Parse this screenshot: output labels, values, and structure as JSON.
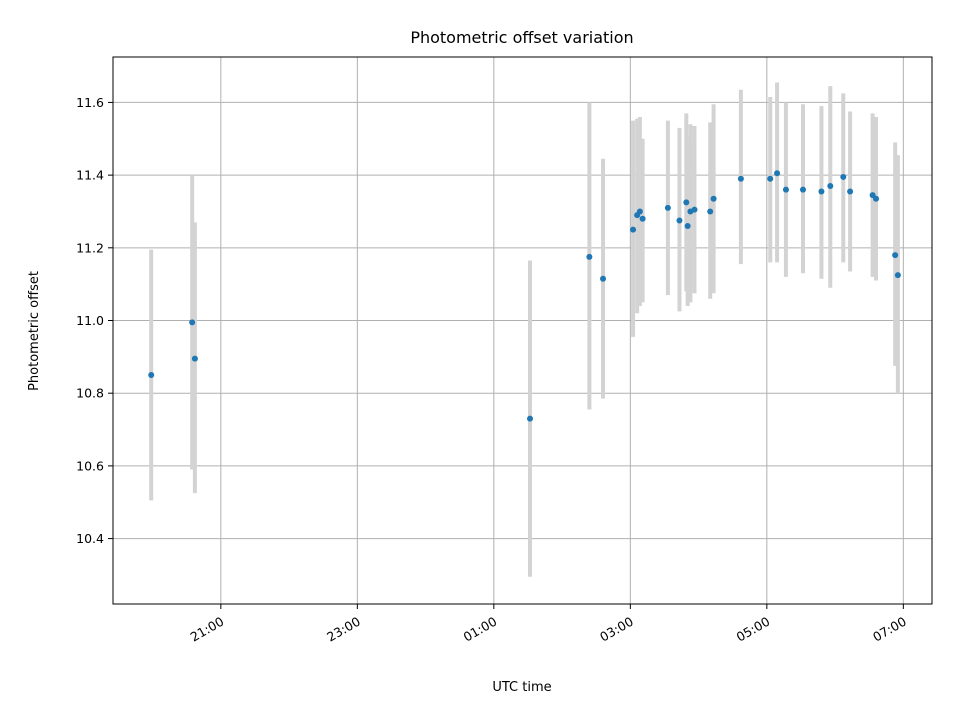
{
  "chart_data": {
    "type": "scatter",
    "title": "Photometric offset variation",
    "xlabel": "UTC time",
    "ylabel": "Photometric offset",
    "x_tick_labels": [
      "21:00",
      "23:00",
      "01:00",
      "03:00",
      "05:00",
      "07:00"
    ],
    "x_tick_hours": [
      21,
      23,
      25,
      27,
      29,
      31
    ],
    "xlim_hours": [
      19.42,
      31.42
    ],
    "ylim": [
      10.22,
      11.725
    ],
    "y_ticks": [
      10.4,
      10.6,
      10.8,
      11.0,
      11.2,
      11.4,
      11.6
    ],
    "y_tick_labels": [
      "10.4",
      "10.6",
      "10.8",
      "11.0",
      "11.2",
      "11.4",
      "11.6"
    ],
    "grid": true,
    "point_color": "#1f77b4",
    "errorbar_color": "#d3d3d3",
    "points": [
      {
        "t": 19.98,
        "y": 10.85,
        "lo": 10.505,
        "hi": 11.195
      },
      {
        "t": 20.58,
        "y": 10.995,
        "lo": 10.59,
        "hi": 11.4
      },
      {
        "t": 20.62,
        "y": 10.895,
        "lo": 10.525,
        "hi": 11.27
      },
      {
        "t": 25.53,
        "y": 10.73,
        "lo": 10.295,
        "hi": 11.165
      },
      {
        "t": 26.4,
        "y": 11.175,
        "lo": 10.755,
        "hi": 11.6
      },
      {
        "t": 26.6,
        "y": 11.115,
        "lo": 10.785,
        "hi": 11.445
      },
      {
        "t": 27.04,
        "y": 11.25,
        "lo": 10.955,
        "hi": 11.55
      },
      {
        "t": 27.1,
        "y": 11.29,
        "lo": 11.02,
        "hi": 11.555
      },
      {
        "t": 27.14,
        "y": 11.3,
        "lo": 11.04,
        "hi": 11.56
      },
      {
        "t": 27.18,
        "y": 11.28,
        "lo": 11.05,
        "hi": 11.5
      },
      {
        "t": 27.55,
        "y": 11.31,
        "lo": 11.07,
        "hi": 11.55
      },
      {
        "t": 27.72,
        "y": 11.275,
        "lo": 11.025,
        "hi": 11.53
      },
      {
        "t": 27.82,
        "y": 11.325,
        "lo": 11.08,
        "hi": 11.57
      },
      {
        "t": 27.84,
        "y": 11.26,
        "lo": 11.04,
        "hi": 11.505
      },
      {
        "t": 27.88,
        "y": 11.3,
        "lo": 11.05,
        "hi": 11.54
      },
      {
        "t": 27.94,
        "y": 11.305,
        "lo": 11.075,
        "hi": 11.535
      },
      {
        "t": 28.17,
        "y": 11.3,
        "lo": 11.06,
        "hi": 11.545
      },
      {
        "t": 28.22,
        "y": 11.335,
        "lo": 11.075,
        "hi": 11.595
      },
      {
        "t": 28.62,
        "y": 11.39,
        "lo": 11.155,
        "hi": 11.635
      },
      {
        "t": 29.05,
        "y": 11.39,
        "lo": 11.16,
        "hi": 11.615
      },
      {
        "t": 29.15,
        "y": 11.405,
        "lo": 11.16,
        "hi": 11.655
      },
      {
        "t": 29.28,
        "y": 11.36,
        "lo": 11.12,
        "hi": 11.6
      },
      {
        "t": 29.53,
        "y": 11.36,
        "lo": 11.13,
        "hi": 11.595
      },
      {
        "t": 29.8,
        "y": 11.355,
        "lo": 11.115,
        "hi": 11.59
      },
      {
        "t": 29.93,
        "y": 11.37,
        "lo": 11.09,
        "hi": 11.645
      },
      {
        "t": 30.12,
        "y": 11.395,
        "lo": 11.16,
        "hi": 11.625
      },
      {
        "t": 30.22,
        "y": 11.355,
        "lo": 11.135,
        "hi": 11.575
      },
      {
        "t": 30.55,
        "y": 11.345,
        "lo": 11.12,
        "hi": 11.57
      },
      {
        "t": 30.6,
        "y": 11.335,
        "lo": 11.11,
        "hi": 11.56
      },
      {
        "t": 30.88,
        "y": 11.18,
        "lo": 10.875,
        "hi": 11.49
      },
      {
        "t": 30.92,
        "y": 11.125,
        "lo": 10.8,
        "hi": 11.455
      }
    ]
  }
}
